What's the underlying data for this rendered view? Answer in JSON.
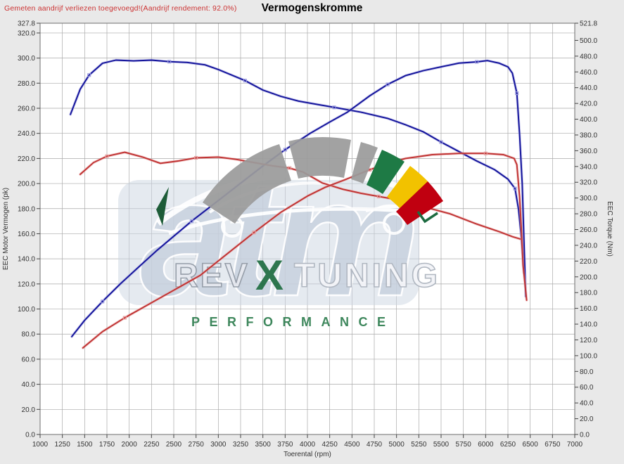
{
  "header": {
    "note": "Gemeten aandrijf verliezen toegevoegd!(Aandrijf rendement: 92.0%)",
    "title": "Vermogenskromme"
  },
  "colors": {
    "background": "#e9e9e9",
    "plot_background": "#ffffff",
    "grid": "#a9a9a9",
    "plot_border": "#6e6e6e",
    "note_text": "#cc3333",
    "title_text": "#000000",
    "axis_text": "#333333",
    "curve_blue": "#12129a",
    "curve_blue_halo": "#9b9bde",
    "curve_red": "#c03232",
    "curve_red_halo": "#e6a0a0",
    "speedo_gray": "#9b9b9b",
    "speedo_green": "#1e7a45",
    "speedo_yellow": "#f2c200",
    "speedo_red": "#c00010",
    "watermark_tile": "#ccd5e2",
    "watermark_letters": "#c7d0dd",
    "performance_green": "#2e7d4f"
  },
  "watermark": {
    "brand_text": "atm",
    "rev_text": "REV",
    "x_mark": "X",
    "tuning_text": "TUNING",
    "performance_text": "PERFORMANCE"
  },
  "chart_data": {
    "type": "line",
    "title": "Vermogenskromme",
    "xlabel": "Toerental (rpm)",
    "ylabel_left": "EEC Motor Vermogen (pk)",
    "ylabel_right": "EEC Torque (Nm)",
    "x_range": [
      1000,
      7000
    ],
    "y_left_range": [
      0,
      327.8
    ],
    "y_right_range": [
      0,
      521.8
    ],
    "grid": true,
    "legend": "none",
    "x_ticks": [
      1000,
      1250,
      1500,
      1750,
      2000,
      2250,
      2500,
      2750,
      3000,
      3250,
      3500,
      3750,
      4000,
      4250,
      4500,
      4750,
      5000,
      5250,
      5500,
      5750,
      6000,
      6250,
      6500,
      6750,
      7000
    ],
    "y_left_ticks": [
      0,
      20,
      40,
      60,
      80,
      100,
      120,
      140,
      160,
      180,
      200,
      220,
      240,
      260,
      280,
      300,
      320,
      327.8
    ],
    "y_right_ticks": [
      0,
      20,
      40,
      60,
      80,
      100,
      120,
      140,
      160,
      180,
      200,
      220,
      240,
      260,
      280,
      300,
      320,
      340,
      360,
      380,
      400,
      420,
      440,
      460,
      480,
      500,
      521.8
    ],
    "series": [
      {
        "name": "torque_tuned_blue",
        "axis": "right",
        "unit": "Nm",
        "color": "#12129a",
        "halo": "#9b9bde",
        "points": [
          [
            1340,
            406
          ],
          [
            1450,
            438
          ],
          [
            1550,
            456
          ],
          [
            1700,
            471
          ],
          [
            1850,
            475
          ],
          [
            2050,
            474
          ],
          [
            2250,
            475
          ],
          [
            2450,
            473
          ],
          [
            2650,
            472
          ],
          [
            2850,
            469
          ],
          [
            3000,
            463
          ],
          [
            3150,
            456
          ],
          [
            3300,
            449
          ],
          [
            3500,
            437
          ],
          [
            3700,
            429
          ],
          [
            3900,
            423
          ],
          [
            4100,
            419
          ],
          [
            4300,
            415
          ],
          [
            4600,
            409
          ],
          [
            4900,
            401
          ],
          [
            5100,
            393
          ],
          [
            5300,
            384
          ],
          [
            5500,
            371
          ],
          [
            5700,
            359
          ],
          [
            5900,
            347
          ],
          [
            6100,
            336
          ],
          [
            6250,
            324
          ],
          [
            6330,
            312
          ],
          [
            6370,
            285
          ],
          [
            6400,
            250
          ],
          [
            6430,
            205
          ]
        ]
      },
      {
        "name": "power_tuned_blue",
        "axis": "left",
        "unit": "pk",
        "color": "#12129a",
        "halo": "#9b9bde",
        "points": [
          [
            1355,
            78
          ],
          [
            1500,
            91
          ],
          [
            1700,
            106
          ],
          [
            1900,
            120
          ],
          [
            2100,
            133
          ],
          [
            2300,
            146
          ],
          [
            2500,
            158
          ],
          [
            2700,
            170
          ],
          [
            2900,
            181
          ],
          [
            3100,
            192
          ],
          [
            3300,
            203
          ],
          [
            3500,
            214
          ],
          [
            3750,
            227
          ],
          [
            4030,
            240
          ],
          [
            4250,
            249
          ],
          [
            4450,
            257
          ],
          [
            4700,
            270
          ],
          [
            4900,
            279
          ],
          [
            5100,
            286
          ],
          [
            5300,
            290
          ],
          [
            5500,
            293
          ],
          [
            5700,
            296
          ],
          [
            5900,
            297
          ],
          [
            6020,
            298
          ],
          [
            6150,
            296
          ],
          [
            6250,
            293
          ],
          [
            6300,
            288
          ],
          [
            6350,
            272
          ],
          [
            6380,
            240
          ],
          [
            6410,
            200
          ],
          [
            6430,
            155
          ],
          [
            6450,
            110
          ]
        ]
      },
      {
        "name": "torque_original_red",
        "axis": "right",
        "unit": "Nm",
        "color": "#c03232",
        "halo": "#e6a0a0",
        "points": [
          [
            1450,
            330
          ],
          [
            1600,
            345
          ],
          [
            1750,
            353
          ],
          [
            1950,
            358
          ],
          [
            2150,
            352
          ],
          [
            2350,
            344
          ],
          [
            2550,
            347
          ],
          [
            2750,
            351
          ],
          [
            3000,
            352
          ],
          [
            3200,
            349
          ],
          [
            3400,
            345
          ],
          [
            3600,
            341
          ],
          [
            3800,
            338
          ],
          [
            3950,
            333
          ],
          [
            4170,
            319
          ],
          [
            4400,
            311
          ],
          [
            4600,
            306
          ],
          [
            4800,
            302
          ],
          [
            5000,
            298
          ],
          [
            5300,
            289
          ],
          [
            5600,
            280
          ],
          [
            5900,
            267
          ],
          [
            6160,
            257
          ],
          [
            6300,
            251
          ],
          [
            6390,
            248
          ]
        ]
      },
      {
        "name": "power_original_red",
        "axis": "left",
        "unit": "pk",
        "color": "#c03232",
        "halo": "#e6a0a0",
        "points": [
          [
            1480,
            69
          ],
          [
            1700,
            82
          ],
          [
            1950,
            93
          ],
          [
            2200,
            103
          ],
          [
            2500,
            115
          ],
          [
            2800,
            127
          ],
          [
            3100,
            144
          ],
          [
            3400,
            161
          ],
          [
            3700,
            177
          ],
          [
            4000,
            190
          ],
          [
            4200,
            197
          ],
          [
            4420,
            203
          ],
          [
            4700,
            211
          ],
          [
            4900,
            216
          ],
          [
            5100,
            220
          ],
          [
            5400,
            223
          ],
          [
            5700,
            224
          ],
          [
            6000,
            224
          ],
          [
            6200,
            223
          ],
          [
            6320,
            220
          ],
          [
            6350,
            215
          ],
          [
            6380,
            190
          ],
          [
            6400,
            165
          ],
          [
            6420,
            135
          ],
          [
            6460,
            107
          ]
        ]
      }
    ]
  }
}
